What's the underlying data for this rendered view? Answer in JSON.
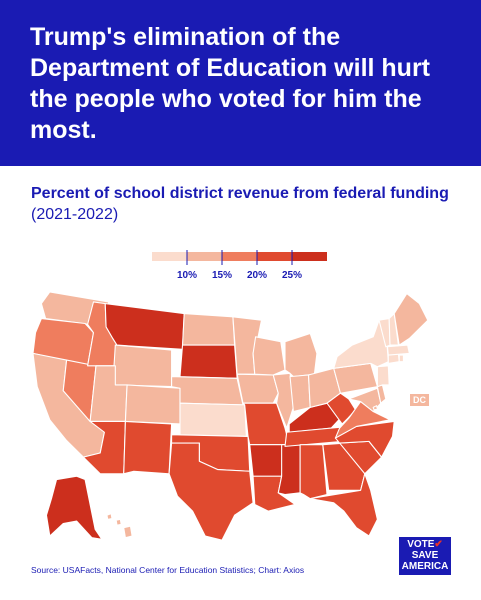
{
  "headline": "Trump's elimination of the Department of Education will hurt the people who voted for him the most.",
  "subtitle": {
    "bold": "Percent of school district revenue from federal funding",
    "period": " (2021-2022)"
  },
  "source": "Source: USAFacts, National Center for Education Statistics; Chart: Axios",
  "dc_label": "DC",
  "badge": {
    "line1": "VOTE",
    "line2": "SAVE",
    "line3": "AMERICA",
    "check": "✔"
  },
  "colors": {
    "banner": "#1a1bb3",
    "bin1": "#fbdccd",
    "bin2": "#f4b79e",
    "bin3": "#ef7d5e",
    "bin4": "#e04a2f",
    "bin5": "#cc2f1d"
  },
  "chart_data": {
    "type": "choropleth",
    "legend": {
      "ticks": [
        "10%",
        "15%",
        "20%",
        "25%"
      ],
      "bins": 5
    },
    "states": [
      {
        "id": "WA",
        "bin": 2
      },
      {
        "id": "OR",
        "bin": 3
      },
      {
        "id": "CA",
        "bin": 2
      },
      {
        "id": "NV",
        "bin": 3
      },
      {
        "id": "ID",
        "bin": 3
      },
      {
        "id": "MT",
        "bin": 5
      },
      {
        "id": "WY",
        "bin": 2
      },
      {
        "id": "UT",
        "bin": 2
      },
      {
        "id": "AZ",
        "bin": 4
      },
      {
        "id": "CO",
        "bin": 2
      },
      {
        "id": "NM",
        "bin": 4
      },
      {
        "id": "ND",
        "bin": 2
      },
      {
        "id": "SD",
        "bin": 5
      },
      {
        "id": "NE",
        "bin": 2
      },
      {
        "id": "KS",
        "bin": 1
      },
      {
        "id": "OK",
        "bin": 4
      },
      {
        "id": "TX",
        "bin": 4
      },
      {
        "id": "MN",
        "bin": 2
      },
      {
        "id": "IA",
        "bin": 2
      },
      {
        "id": "MO",
        "bin": 4
      },
      {
        "id": "AR",
        "bin": 5
      },
      {
        "id": "LA",
        "bin": 4
      },
      {
        "id": "WI",
        "bin": 2
      },
      {
        "id": "IL",
        "bin": 2
      },
      {
        "id": "MS",
        "bin": 5
      },
      {
        "id": "MI",
        "bin": 2
      },
      {
        "id": "IN",
        "bin": 2
      },
      {
        "id": "KY",
        "bin": 5
      },
      {
        "id": "TN",
        "bin": 4
      },
      {
        "id": "AL",
        "bin": 4
      },
      {
        "id": "OH",
        "bin": 2
      },
      {
        "id": "WV",
        "bin": 4
      },
      {
        "id": "GA",
        "bin": 4
      },
      {
        "id": "FL",
        "bin": 4
      },
      {
        "id": "SC",
        "bin": 4
      },
      {
        "id": "NC",
        "bin": 4
      },
      {
        "id": "VA",
        "bin": 3
      },
      {
        "id": "PA",
        "bin": 2
      },
      {
        "id": "NY",
        "bin": 1
      },
      {
        "id": "MD",
        "bin": 2
      },
      {
        "id": "DE",
        "bin": 2
      },
      {
        "id": "NJ",
        "bin": 1
      },
      {
        "id": "CT",
        "bin": 1
      },
      {
        "id": "RI",
        "bin": 1
      },
      {
        "id": "MA",
        "bin": 1
      },
      {
        "id": "VT",
        "bin": 1
      },
      {
        "id": "NH",
        "bin": 1
      },
      {
        "id": "ME",
        "bin": 2
      },
      {
        "id": "AK",
        "bin": 5
      },
      {
        "id": "HI",
        "bin": 2
      },
      {
        "id": "DC",
        "bin": 2
      }
    ]
  }
}
